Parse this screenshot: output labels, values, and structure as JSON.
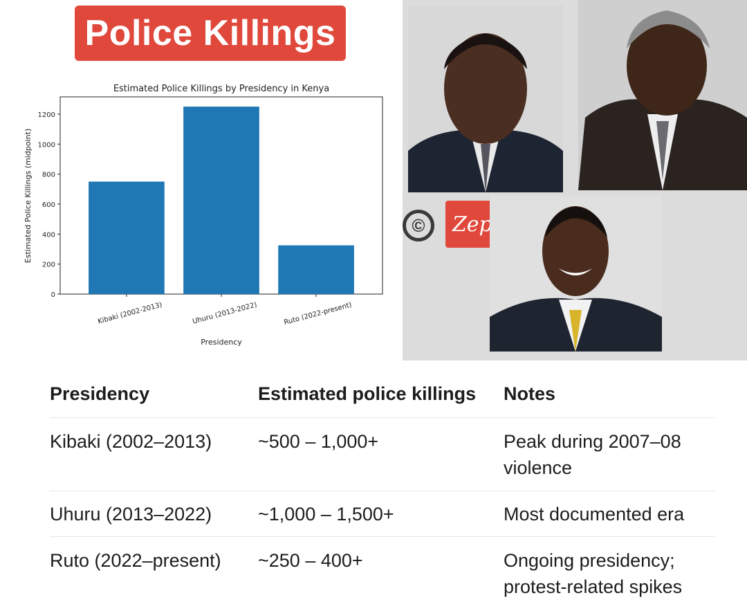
{
  "banner": {
    "title": "Police Killings"
  },
  "logo": {
    "copyright_symbol": "©",
    "brand": "Zeph"
  },
  "chart_data": {
    "type": "bar",
    "title": "Estimated Police Killings by Presidency in Kenya",
    "xlabel": "Presidency",
    "ylabel": "Estimated Police Killings (midpoint)",
    "categories": [
      "Kibaki (2002-2013)",
      "Uhuru (2013-2022)",
      "Ruto (2022-present)"
    ],
    "values": [
      750,
      1250,
      325
    ],
    "ylim": [
      0,
      1315
    ],
    "yticks": [
      0,
      200,
      400,
      600,
      800,
      1000,
      1200
    ],
    "bar_color": "#1f77b4",
    "grid": false
  },
  "table": {
    "headers": [
      "Presidency",
      "Estimated police killings",
      "Notes"
    ],
    "rows": [
      {
        "presidency": "Kibaki (2002–2013)",
        "estimate": "~500 – 1,000+",
        "notes": [
          "Peak during 2007–08",
          "violence"
        ]
      },
      {
        "presidency": "Uhuru (2013–2022)",
        "estimate": "~1,000 – 1,500+",
        "notes": [
          "Most documented era"
        ]
      },
      {
        "presidency": "Ruto (2022–present)",
        "estimate": "~250 – 400+",
        "notes": [
          "Ongoing presidency;",
          "protest-related spikes"
        ]
      }
    ]
  },
  "colors": {
    "accent_red": "#e0483c",
    "photo_bg": "#dcdcdc"
  }
}
